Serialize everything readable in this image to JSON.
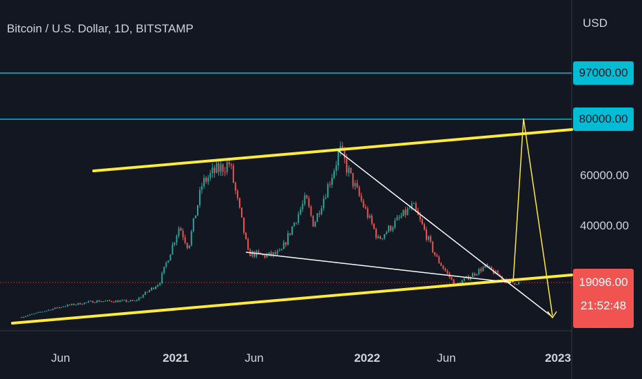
{
  "chart": {
    "title": "Bitcoin / U.S. Dollar, 1D, BITSTAMP",
    "currency": "USD",
    "price_lines": [
      {
        "value": 97000,
        "label": "97000.00",
        "color": "#00bcd4"
      },
      {
        "value": 80000,
        "label": "80000.00",
        "color": "#00bcd4"
      }
    ],
    "last_price": {
      "label": "19096.00",
      "countdown": "21:52:48",
      "color": "#f05350"
    },
    "colors": {
      "up": "#26a69a",
      "down": "#ef5350",
      "trend": "#ffeb3b",
      "wedge": "#ffffff",
      "hline": "#00bcd4"
    }
  },
  "chart_data": {
    "type": "line",
    "y_ticks": [
      "60000.00",
      "40000.00"
    ],
    "x_ticks": [
      {
        "label": "Jun",
        "bold": false
      },
      {
        "label": "2021",
        "bold": true
      },
      {
        "label": "Jun",
        "bold": false
      },
      {
        "label": "2022",
        "bold": true
      },
      {
        "label": "Jun",
        "bold": false
      },
      {
        "label": "2023",
        "bold": true
      }
    ],
    "price_path": [
      [
        "2020-03-13",
        5000
      ],
      [
        "2020-06-01",
        9500
      ],
      [
        "2020-08-01",
        11500
      ],
      [
        "2020-10-15",
        11500
      ],
      [
        "2020-12-01",
        19000
      ],
      [
        "2021-01-08",
        40000
      ],
      [
        "2021-01-25",
        32000
      ],
      [
        "2021-02-21",
        57000
      ],
      [
        "2021-03-13",
        61000
      ],
      [
        "2021-04-14",
        64500
      ],
      [
        "2021-05-19",
        30000
      ],
      [
        "2021-06-22",
        29000
      ],
      [
        "2021-07-20",
        30000
      ],
      [
        "2021-09-06",
        51000
      ],
      [
        "2021-09-21",
        40500
      ],
      [
        "2021-11-10",
        69000
      ],
      [
        "2022-01-22",
        35000
      ],
      [
        "2022-03-29",
        48000
      ],
      [
        "2022-05-12",
        28500
      ],
      [
        "2022-06-18",
        18000
      ],
      [
        "2022-08-14",
        25000
      ],
      [
        "2022-09-30",
        19000
      ],
      [
        "2022-10-20",
        19096
      ]
    ]
  }
}
